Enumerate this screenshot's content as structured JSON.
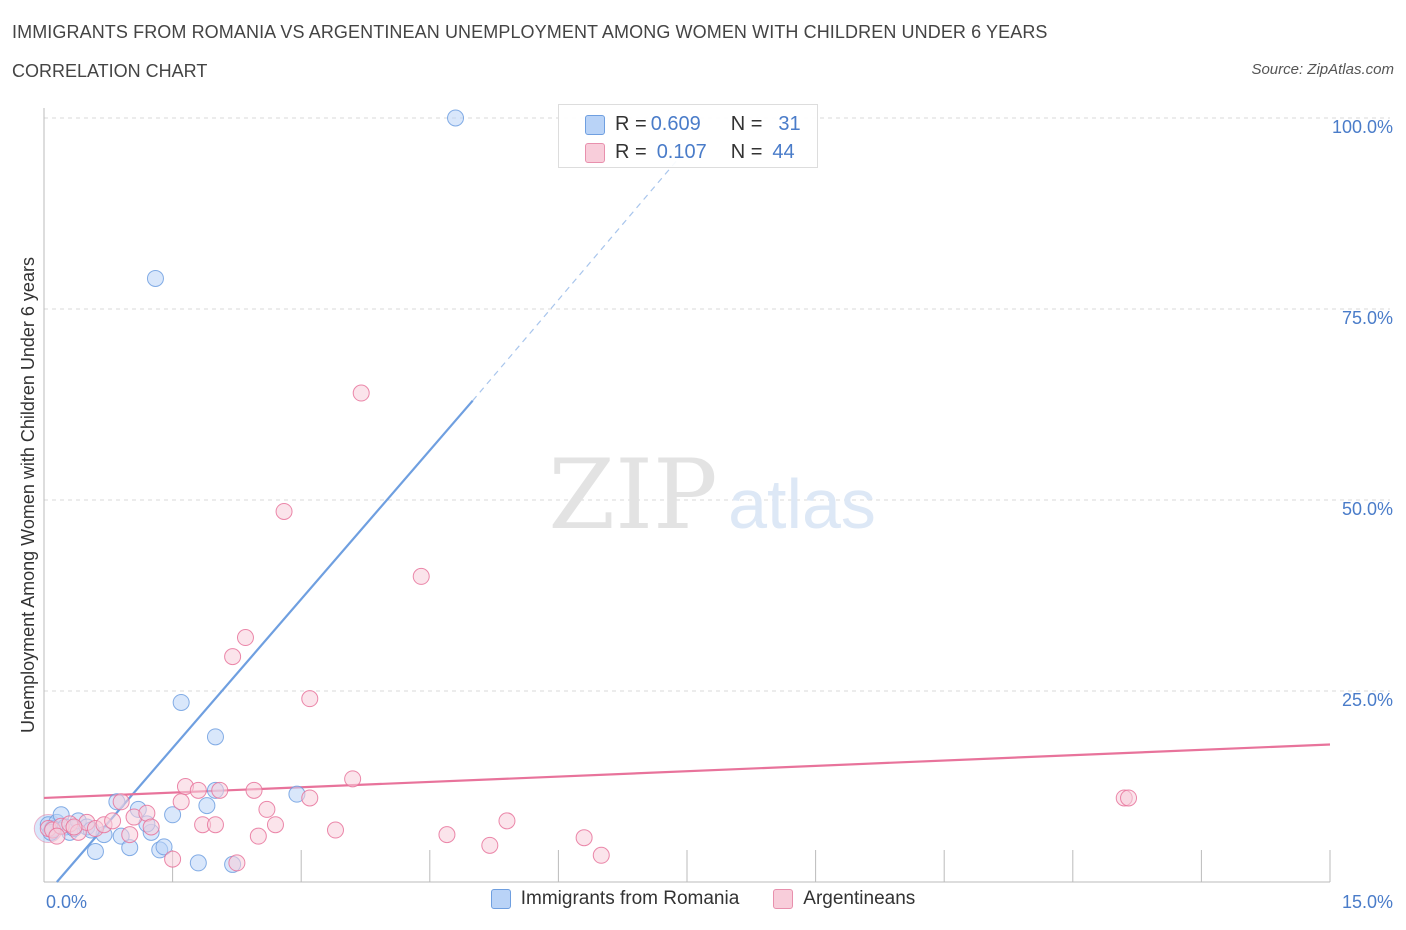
{
  "title": "IMMIGRANTS FROM ROMANIA VS ARGENTINEAN UNEMPLOYMENT AMONG WOMEN WITH CHILDREN UNDER 6 YEARS",
  "subtitle": "CORRELATION CHART",
  "source": "Source: ZipAtlas.com",
  "watermark": {
    "zip": "ZIP",
    "atlas": "atlas"
  },
  "stats": [
    {
      "r_label": "R =",
      "r": "0.609",
      "n_label": "N =",
      "n": "31",
      "color": "#a9c8f5",
      "border": "#6f9fe0"
    },
    {
      "r_label": "R =",
      "r": "0.107",
      "n_label": "N =",
      "n": "44",
      "color": "#f7c3d3",
      "border": "#e890ad"
    }
  ],
  "legend": [
    {
      "label": "Immigrants from Romania",
      "color": "#b9d3f7",
      "border": "#6f9fe0"
    },
    {
      "label": "Argentineans",
      "color": "#f8cdda",
      "border": "#e890ad"
    }
  ],
  "chart_data": {
    "type": "scatter",
    "title": "IMMIGRANTS FROM ROMANIA VS ARGENTINEAN UNEMPLOYMENT AMONG WOMEN WITH CHILDREN UNDER 6 YEARS",
    "xlabel": "",
    "ylabel": "Unemployment Among Women with Children Under 6 years",
    "xlim": [
      0,
      15
    ],
    "ylim": [
      0,
      100
    ],
    "x_tick_labels": [
      {
        "value": 0,
        "label": "0.0%"
      },
      {
        "value": 15,
        "label": "15.0%"
      }
    ],
    "y_tick_labels": [
      {
        "value": 25,
        "label": "25.0%"
      },
      {
        "value": 50,
        "label": "50.0%"
      },
      {
        "value": 75,
        "label": "75.0%"
      },
      {
        "value": 100,
        "label": "100.0%"
      }
    ],
    "grid": true,
    "series": [
      {
        "name": "Immigrants from Romania",
        "color": "#6f9fe0",
        "fill": "#b9d3f7",
        "points": [
          [
            0.05,
            7.5
          ],
          [
            0.1,
            7.0
          ],
          [
            0.15,
            7.8
          ],
          [
            0.2,
            8.8
          ],
          [
            0.25,
            7.2
          ],
          [
            0.3,
            6.5
          ],
          [
            0.35,
            7.0
          ],
          [
            0.4,
            8.0
          ],
          [
            0.5,
            7.2
          ],
          [
            0.6,
            4.0
          ],
          [
            0.7,
            6.2
          ],
          [
            0.85,
            10.5
          ],
          [
            0.9,
            6.0
          ],
          [
            1.0,
            4.5
          ],
          [
            1.1,
            9.5
          ],
          [
            1.25,
            6.5
          ],
          [
            1.35,
            4.2
          ],
          [
            1.4,
            4.6
          ],
          [
            1.5,
            8.8
          ],
          [
            1.6,
            23.5
          ],
          [
            1.8,
            2.5
          ],
          [
            1.9,
            10.0
          ],
          [
            2.0,
            19.0
          ],
          [
            2.0,
            12.0
          ],
          [
            2.2,
            2.3
          ],
          [
            2.95,
            11.5
          ],
          [
            1.3,
            79.0
          ],
          [
            4.8,
            100.0
          ],
          [
            0.08,
            6.5
          ],
          [
            0.55,
            6.8
          ],
          [
            1.2,
            7.6
          ]
        ],
        "trend": {
          "x0": 0.15,
          "y0": 0.0,
          "x1": 5.0,
          "y1": 63.0,
          "dash_to_x": 7.5,
          "dash_to_y": 96.0
        }
      },
      {
        "name": "Argentineans",
        "color": "#e8739b",
        "fill": "#f8cdda",
        "points": [
          [
            0.05,
            7.0
          ],
          [
            0.1,
            6.8
          ],
          [
            0.2,
            7.3
          ],
          [
            0.3,
            7.6
          ],
          [
            0.4,
            6.5
          ],
          [
            0.5,
            7.8
          ],
          [
            0.6,
            7.0
          ],
          [
            0.7,
            7.5
          ],
          [
            0.8,
            8.0
          ],
          [
            0.9,
            10.5
          ],
          [
            1.0,
            6.2
          ],
          [
            1.05,
            8.5
          ],
          [
            1.2,
            9.0
          ],
          [
            1.25,
            7.2
          ],
          [
            1.5,
            3.0
          ],
          [
            1.6,
            10.5
          ],
          [
            1.65,
            12.5
          ],
          [
            1.8,
            12.0
          ],
          [
            1.85,
            7.5
          ],
          [
            2.0,
            7.5
          ],
          [
            2.05,
            12.0
          ],
          [
            2.2,
            29.5
          ],
          [
            2.25,
            2.5
          ],
          [
            2.35,
            32.0
          ],
          [
            2.45,
            12.0
          ],
          [
            2.5,
            6.0
          ],
          [
            2.6,
            9.5
          ],
          [
            2.7,
            7.5
          ],
          [
            2.8,
            48.5
          ],
          [
            3.1,
            24.0
          ],
          [
            3.1,
            11.0
          ],
          [
            3.4,
            6.8
          ],
          [
            3.6,
            13.5
          ],
          [
            3.7,
            64.0
          ],
          [
            4.4,
            40.0
          ],
          [
            4.7,
            6.2
          ],
          [
            5.2,
            4.8
          ],
          [
            5.4,
            8.0
          ],
          [
            6.3,
            5.8
          ],
          [
            6.5,
            3.5
          ],
          [
            12.6,
            11.0
          ],
          [
            12.65,
            11.0
          ],
          [
            0.15,
            6.0
          ],
          [
            0.35,
            7.2
          ]
        ],
        "trend": {
          "x0": 0.0,
          "y0": 11.0,
          "x1": 15.0,
          "y1": 18.0
        }
      }
    ]
  }
}
